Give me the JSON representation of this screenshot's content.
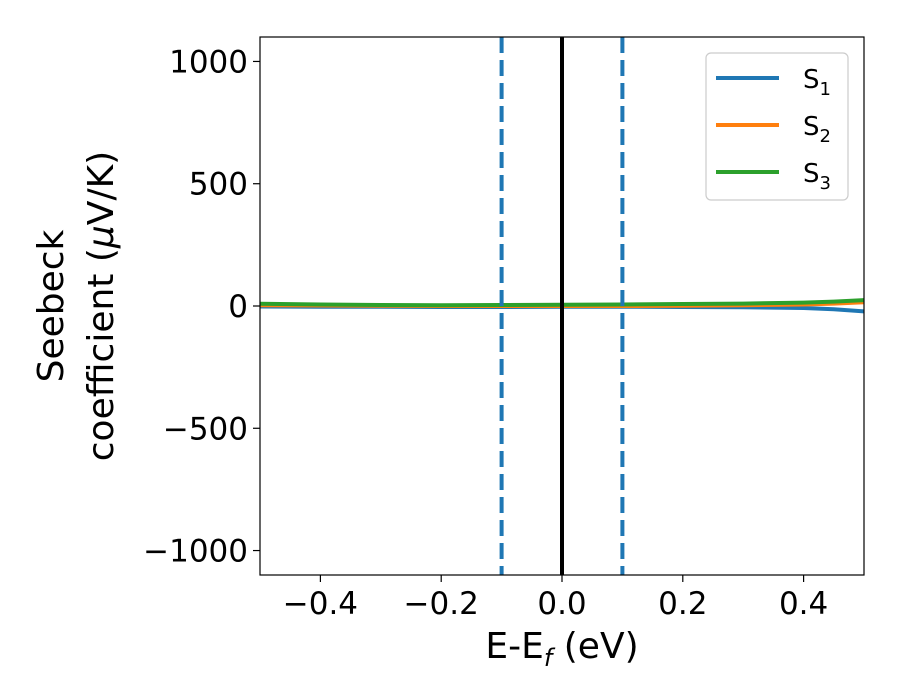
{
  "chart_data": {
    "type": "line",
    "title": "",
    "xlabel": "E-E",
    "xlabel_subscript": "f",
    "xlabel_unit": " (eV)",
    "ylabel_line1": "Seebeck",
    "ylabel_line2_prefix": "coefficient  (",
    "ylabel_mu": "μ",
    "ylabel_line2_suffix": "V/K)",
    "xlim": [
      -0.5,
      0.5
    ],
    "ylim": [
      -1100,
      1100
    ],
    "x_ticks": [
      -0.4,
      -0.2,
      0.0,
      0.2,
      0.4
    ],
    "x_tick_labels": [
      "−0.4",
      "−0.2",
      "0.0",
      "0.2",
      "0.4"
    ],
    "y_ticks": [
      1000,
      500,
      0,
      -500,
      -1000
    ],
    "y_tick_labels": [
      "1000",
      "500",
      "0",
      "−500",
      "−1000"
    ],
    "grid": false,
    "legend_position": "top-right",
    "vertical_lines": [
      {
        "x": -0.1,
        "style": "dashed",
        "color": "#1f77b4"
      },
      {
        "x": 0.0,
        "style": "solid",
        "color": "#000000"
      },
      {
        "x": 0.1,
        "style": "dashed",
        "color": "#1f77b4"
      }
    ],
    "x": [
      -0.5,
      -0.4,
      -0.3,
      -0.2,
      -0.1,
      0.0,
      0.1,
      0.2,
      0.3,
      0.4,
      0.45,
      0.5
    ],
    "series": [
      {
        "name": "S",
        "subscript": "1",
        "color": "#1f77b4",
        "values": [
          -2,
          -3,
          -3,
          -4,
          -4,
          -3,
          -3,
          -4,
          -5,
          -8,
          -13,
          -22
        ]
      },
      {
        "name": "S",
        "subscript": "2",
        "color": "#ff7f0e",
        "values": [
          3,
          2,
          1,
          0,
          0,
          0,
          0,
          1,
          3,
          6,
          10,
          15
        ]
      },
      {
        "name": "S",
        "subscript": "3",
        "color": "#2ca02c",
        "values": [
          9,
          6,
          4,
          3,
          4,
          5,
          6,
          8,
          10,
          14,
          18,
          24
        ]
      }
    ]
  }
}
